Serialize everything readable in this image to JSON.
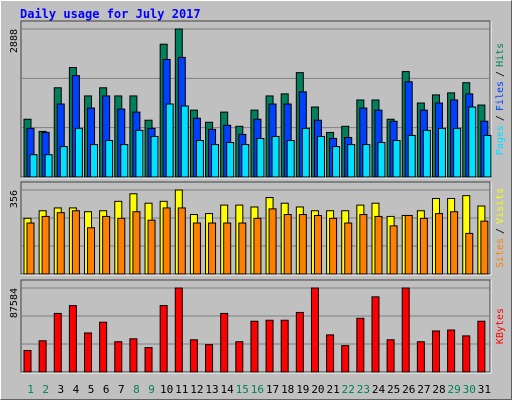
{
  "chart_data": [
    {
      "type": "bar",
      "title": "Daily usage for July 2017",
      "ylim": [
        0,
        2888
      ],
      "yticks": [
        2888
      ],
      "legend_separator": "/",
      "series": [
        {
          "name": "Pages",
          "color": "#00e0ff",
          "values": [
            435,
            435,
            593,
            949,
            633,
            712,
            633,
            910,
            791,
            1424,
            1385,
            712,
            633,
            673,
            633,
            752,
            791,
            712,
            949,
            791,
            593,
            633,
            633,
            673,
            712,
            811,
            910,
            949,
            949,
            1365,
            811
          ]
        },
        {
          "name": "Files",
          "color": "#0040ff",
          "values": [
            949,
            870,
            1424,
            1978,
            1345,
            1582,
            1325,
            1266,
            949,
            2294,
            2334,
            1147,
            930,
            1009,
            831,
            1127,
            1424,
            1424,
            1662,
            1108,
            752,
            771,
            1345,
            1305,
            1088,
            1859,
            1305,
            1444,
            1503,
            1622,
            1088
          ]
        },
        {
          "name": "Hits",
          "color": "#00805c",
          "values": [
            1127,
            890,
            1741,
            2136,
            1582,
            1741,
            1582,
            1582,
            1108,
            2591,
            2888,
            1305,
            1068,
            1266,
            989,
            1305,
            1582,
            1622,
            2037,
            1365,
            870,
            989,
            1503,
            1503,
            1127,
            2057,
            1444,
            1602,
            1642,
            1840,
            1404
          ]
        }
      ]
    },
    {
      "type": "bar",
      "ylim": [
        0,
        356
      ],
      "yticks": [
        356
      ],
      "legend_separator": "/",
      "series": [
        {
          "name": "Sites",
          "color": "#ff8000",
          "values": [
            216,
            244,
            260,
            268,
            196,
            244,
            236,
            264,
            228,
            280,
            280,
            216,
            216,
            216,
            216,
            236,
            276,
            252,
            252,
            248,
            236,
            216,
            252,
            244,
            204,
            248,
            236,
            256,
            264,
            172,
            224
          ]
        },
        {
          "name": "Visits",
          "color": "#ffff00",
          "values": [
            236,
            268,
            280,
            280,
            264,
            268,
            308,
            340,
            300,
            308,
            356,
            252,
            256,
            292,
            292,
            284,
            324,
            300,
            284,
            268,
            268,
            268,
            292,
            300,
            244,
            248,
            268,
            320,
            320,
            332,
            288
          ]
        }
      ]
    },
    {
      "type": "bar",
      "ylim": [
        0,
        87584
      ],
      "yticks": [
        87584
      ],
      "categories": [
        "1",
        "2",
        "3",
        "4",
        "5",
        "6",
        "7",
        "8",
        "9",
        "10",
        "11",
        "12",
        "13",
        "14",
        "15",
        "16",
        "17",
        "18",
        "19",
        "20",
        "21",
        "22",
        "23",
        "24",
        "25",
        "26",
        "27",
        "28",
        "29",
        "30",
        "31"
      ],
      "category_colors": [
        "#00805c",
        "#00805c",
        "#000000",
        "#000000",
        "#000000",
        "#000000",
        "#000000",
        "#00805c",
        "#00805c",
        "#000000",
        "#000000",
        "#000000",
        "#000000",
        "#000000",
        "#00805c",
        "#00805c",
        "#000000",
        "#000000",
        "#000000",
        "#000000",
        "#000000",
        "#00805c",
        "#00805c",
        "#000000",
        "#000000",
        "#000000",
        "#000000",
        "#000000",
        "#00805c",
        "#00805c",
        "#000000"
      ],
      "series": [
        {
          "name": "KBytes",
          "color": "#ff0000",
          "values": [
            22396,
            32576,
            61080,
            69224,
            40720,
            51918,
            31558,
            34612,
            25450,
            69224,
            87584,
            33594,
            28504,
            61080,
            31558,
            52936,
            53954,
            53954,
            62098,
            87584,
            38684,
            27486,
            55990,
            78386,
            33594,
            87584,
            31558,
            42756,
            43774,
            37666,
            52936
          ]
        }
      ]
    }
  ]
}
